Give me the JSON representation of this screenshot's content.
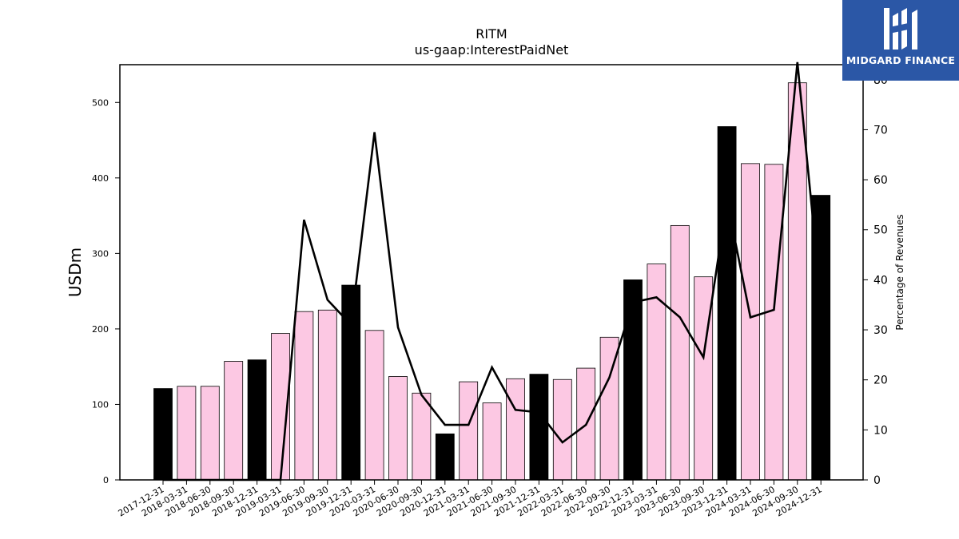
{
  "chart_data": {
    "type": "bar",
    "title": "RITM",
    "subtitle": "us-gaap:InterestPaidNet",
    "ylabel": "USDm",
    "y2label": "Percentage of Revenues",
    "ylim": [
      0,
      550
    ],
    "y2lim": [
      0,
      83
    ],
    "yticks": [
      0,
      100,
      200,
      300,
      400,
      500
    ],
    "y2ticks": [
      0,
      10,
      20,
      30,
      40,
      50,
      60,
      70,
      80
    ],
    "grid": false,
    "categories": [
      "2017-12-31",
      "2018-03-31",
      "2018-06-30",
      "2018-09-30",
      "2018-12-31",
      "2019-03-31",
      "2019-06-30",
      "2019-09-30",
      "2019-12-31",
      "2020-03-31",
      "2020-06-30",
      "2020-09-30",
      "2020-12-31",
      "2021-03-31",
      "2021-06-30",
      "2021-09-30",
      "2021-12-31",
      "2022-03-31",
      "2022-06-30",
      "2022-09-30",
      "2022-12-31",
      "2023-03-31",
      "2023-06-30",
      "2023-09-30",
      "2023-12-31",
      "2024-03-31",
      "2024-06-30",
      "2024-09-30",
      "2024-12-31"
    ],
    "series": [
      {
        "kind": "bar",
        "axis": "left",
        "values": [
          121,
          124,
          124,
          157,
          159,
          194,
          223,
          225,
          258,
          198,
          137,
          115,
          61,
          130,
          102,
          134,
          140,
          133,
          148,
          189,
          265,
          286,
          337,
          269,
          468,
          419,
          418,
          526,
          377
        ],
        "fy_color": "#000000",
        "quarter_color": "#fcc8e3"
      },
      {
        "kind": "line",
        "axis": "right",
        "color": "#000000",
        "values": [
          0,
          0,
          0,
          0,
          0,
          0,
          52,
          36,
          31,
          69.5,
          30.5,
          17,
          11,
          11,
          22.5,
          14,
          13.5,
          7.5,
          11,
          20.5,
          35.5,
          36.5,
          32.5,
          24.5,
          56,
          32.5,
          34,
          83.5,
          36
        ]
      }
    ]
  },
  "logo": {
    "text": "MIDGARD FINANCE"
  }
}
